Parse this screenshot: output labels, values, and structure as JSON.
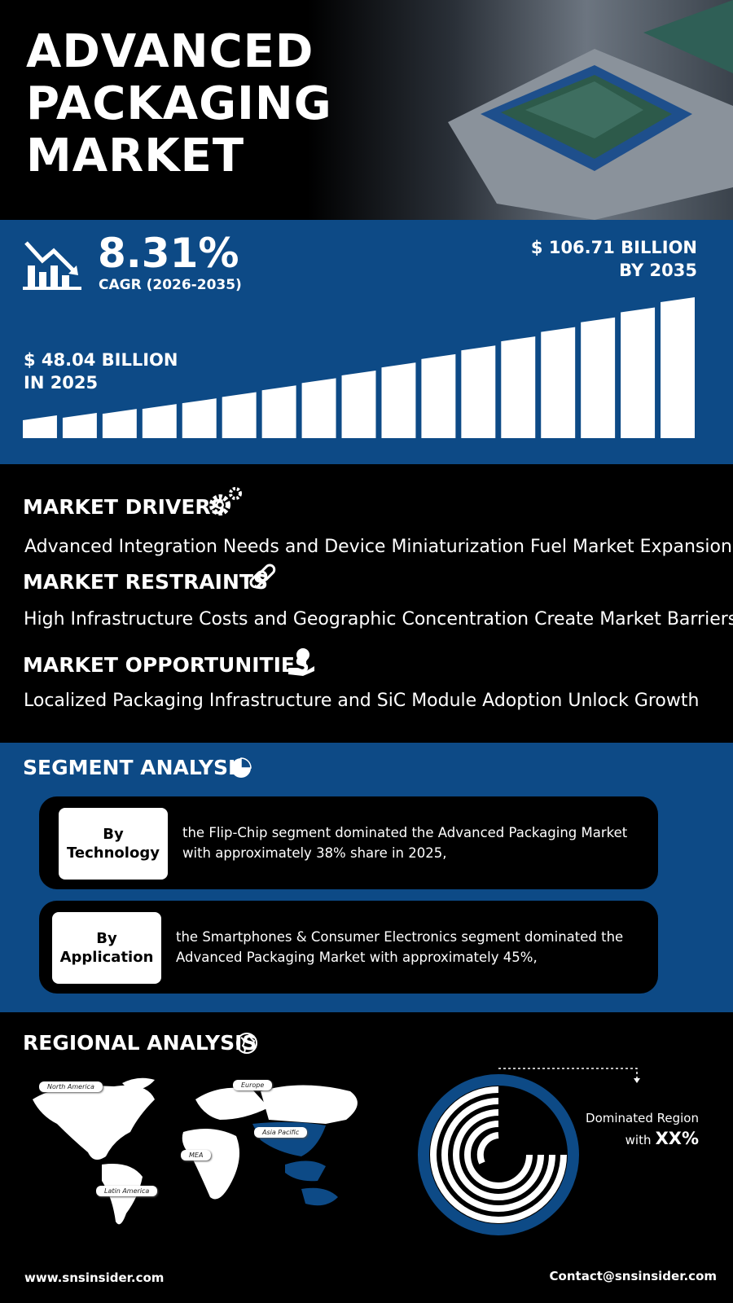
{
  "header": {
    "title_lines": [
      "ADVANCED",
      "PACKAGING",
      "MARKET"
    ]
  },
  "growth": {
    "cagr": "8.31%",
    "cagr_label": "CAGR (2026-2035)",
    "end_value": "$ 106.71 BILLION",
    "end_label": "BY 2035",
    "start_value": "$ 48.04 BILLION",
    "start_label": "IN 2025"
  },
  "dynamics": [
    {
      "heading": "MARKET DRIVERS",
      "text": "Advanced Integration Needs and Device Miniaturization Fuel Market Expansion"
    },
    {
      "heading": "MARKET RESTRAINTS",
      "text": "High Infrastructure Costs and Geographic Concentration Create Market Barriers"
    },
    {
      "heading": "MARKET OPPORTUNITIES",
      "text": "Localized Packaging Infrastructure and SiC Module Adoption Unlock Growth"
    }
  ],
  "segment": {
    "heading": "SEGMENT ANALYSIS",
    "cards": [
      {
        "by": "By",
        "label": "Technology",
        "text": "the Flip-Chip segment dominated the Advanced Packaging Market with approximately 38% share in 2025,"
      },
      {
        "by": "By",
        "label": "Application",
        "text": "the Smartphones & Consumer Electronics segment dominated the Advanced Packaging Market with approximately 45%,"
      }
    ]
  },
  "regional": {
    "heading": "REGIONAL ANALYSIS",
    "regions": [
      "North America",
      "Europe",
      "Asia Pacific",
      "MEA",
      "Latin America"
    ],
    "dominated_label": "Dominated Region",
    "with": "with",
    "share": "XX%"
  },
  "footer": {
    "website": "www.snsinsider.com",
    "contact": "Contact@snsinsider.com"
  }
}
